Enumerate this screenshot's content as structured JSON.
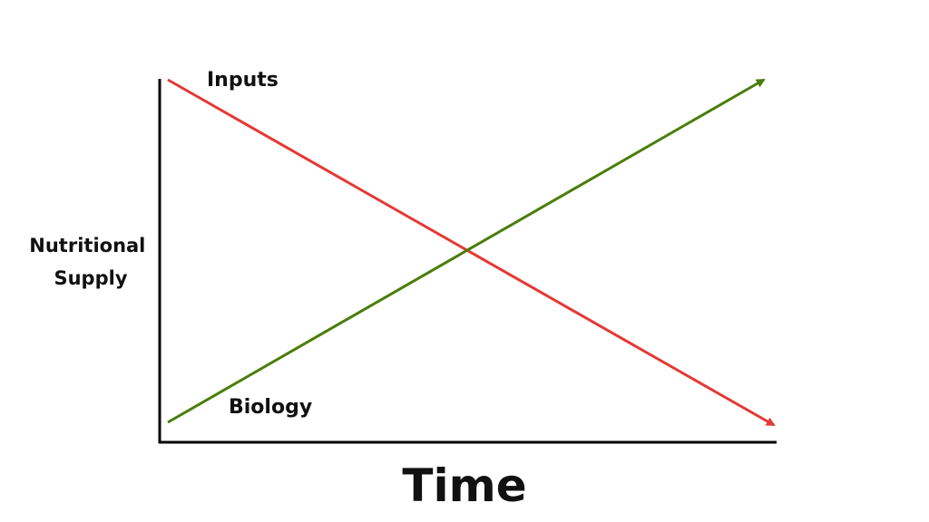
{
  "chart_data": {
    "type": "line",
    "title": "",
    "xlabel": "Time",
    "ylabel": [
      "Nutritional",
      "Supply"
    ],
    "grid": false,
    "legend": "none",
    "x": [
      0,
      1
    ],
    "xlim": [
      0,
      1
    ],
    "ylim": [
      0,
      1
    ],
    "series": [
      {
        "name": "Inputs",
        "values": [
          1,
          0
        ],
        "color": "#e53935",
        "trend": "decreasing"
      },
      {
        "name": "Biology",
        "values": [
          0,
          1
        ],
        "color": "#4a7d0c",
        "trend": "increasing"
      }
    ],
    "axis_color": "#000000"
  }
}
